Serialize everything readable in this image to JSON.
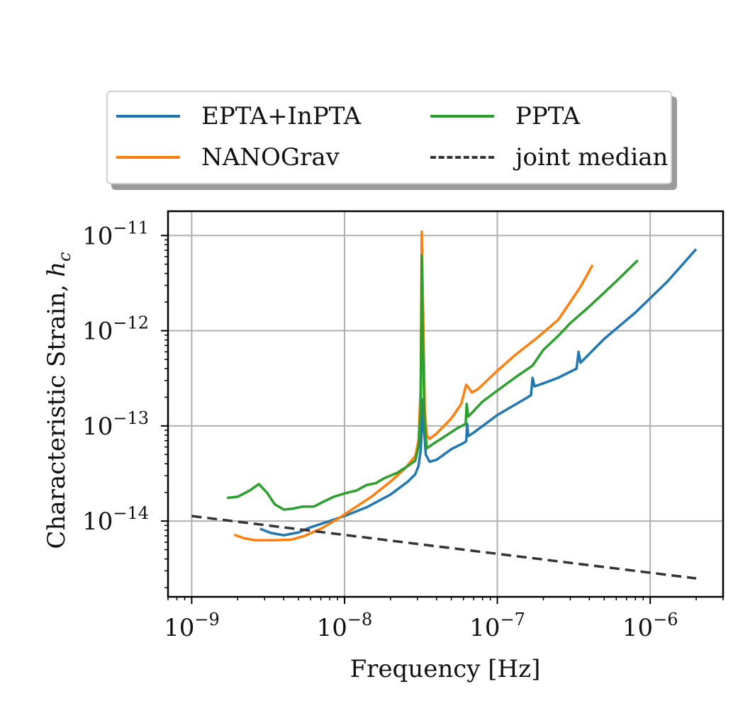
{
  "chart_data": {
    "type": "line",
    "xscale": "log",
    "yscale": "log",
    "xlabel": "Frequency [Hz]",
    "ylabel": "Characteristic Strain,",
    "ylabel_symbol": "h",
    "ylabel_subscript": "c",
    "xlim": [
      7e-10,
      3e-06
    ],
    "ylim": [
      1.6e-15,
      1.8e-11
    ],
    "grid": true,
    "legend_placement": "above",
    "x_ticks": [
      {
        "exp": -9,
        "label": "10",
        "sup": "−9"
      },
      {
        "exp": -8,
        "label": "10",
        "sup": "−8"
      },
      {
        "exp": -7,
        "label": "10",
        "sup": "−7"
      },
      {
        "exp": -6,
        "label": "10",
        "sup": "−6"
      }
    ],
    "y_ticks": [
      {
        "exp": -14,
        "label": "10",
        "sup": "−14"
      },
      {
        "exp": -13,
        "label": "10",
        "sup": "−13"
      },
      {
        "exp": -12,
        "label": "10",
        "sup": "−12"
      },
      {
        "exp": -11,
        "label": "10",
        "sup": "−11"
      }
    ],
    "series": [
      {
        "name": "EPTA+InPTA",
        "color": "#1f77b4",
        "dash": "solid",
        "points": [
          [
            2.8e-09,
            8.3e-15
          ],
          [
            3.3e-09,
            7.5e-15
          ],
          [
            4e-09,
            7.1e-15
          ],
          [
            5e-09,
            7.6e-15
          ],
          [
            6e-09,
            8.6e-15
          ],
          [
            8e-09,
            1e-14
          ],
          [
            1e-08,
            1.13e-14
          ],
          [
            1.4e-08,
            1.4e-14
          ],
          [
            2e-08,
            1.9e-14
          ],
          [
            2.6e-08,
            2.6e-14
          ],
          [
            2.9e-08,
            3.1e-14
          ],
          [
            3.05e-08,
            3.8e-14
          ],
          [
            3.15e-08,
            5.5e-14
          ],
          [
            3.2e-08,
            9e-14
          ],
          [
            3.24e-08,
            1.9e-13
          ],
          [
            3.3e-08,
            1e-13
          ],
          [
            3.4e-08,
            5e-14
          ],
          [
            3.6e-08,
            4.2e-14
          ],
          [
            4e-08,
            4.4e-14
          ],
          [
            5e-08,
            5.7e-14
          ],
          [
            6e-08,
            6.6e-14
          ],
          [
            6.25e-08,
            6.9e-14
          ],
          [
            6.35e-08,
            1.05e-13
          ],
          [
            6.45e-08,
            7.8e-14
          ],
          [
            7e-08,
            8.5e-14
          ],
          [
            1e-07,
            1.3e-13
          ],
          [
            1.5e-07,
            1.9e-13
          ],
          [
            1.66e-07,
            2.1e-13
          ],
          [
            1.7e-07,
            3.2e-13
          ],
          [
            1.75e-07,
            2.6e-13
          ],
          [
            2e-07,
            2.8e-13
          ],
          [
            2.5e-07,
            3.2e-13
          ],
          [
            3.3e-07,
            4e-13
          ],
          [
            3.4e-07,
            6e-13
          ],
          [
            3.5e-07,
            4.6e-13
          ],
          [
            5e-07,
            8.2e-13
          ],
          [
            8e-07,
            1.55e-12
          ],
          [
            1.3e-06,
            3.3e-12
          ],
          [
            2e-06,
            7.2e-12
          ]
        ]
      },
      {
        "name": "NANOGrav",
        "color": "#ff7f0e",
        "dash": "solid",
        "points": [
          [
            1.9e-09,
            7.2e-15
          ],
          [
            2.2e-09,
            6.6e-15
          ],
          [
            2.6e-09,
            6.3e-15
          ],
          [
            3.5e-09,
            6.3e-15
          ],
          [
            4.5e-09,
            6.4e-15
          ],
          [
            5.5e-09,
            7e-15
          ],
          [
            7e-09,
            8.3e-15
          ],
          [
            9e-09,
            1.05e-14
          ],
          [
            1.1e-08,
            1.3e-14
          ],
          [
            1.5e-08,
            1.8e-14
          ],
          [
            2e-08,
            2.6e-14
          ],
          [
            2.5e-08,
            3.6e-14
          ],
          [
            2.9e-08,
            4.8e-14
          ],
          [
            3.05e-08,
            7e-14
          ],
          [
            3.15e-08,
            2.5e-13
          ],
          [
            3.2e-08,
            1.1e-11
          ],
          [
            3.27e-08,
            1.5e-12
          ],
          [
            3.35e-08,
            1.5e-13
          ],
          [
            3.45e-08,
            8e-14
          ],
          [
            3.6e-08,
            7.3e-14
          ],
          [
            4e-08,
            8.3e-14
          ],
          [
            5e-08,
            1.2e-13
          ],
          [
            5.8e-08,
            1.7e-13
          ],
          [
            6.25e-08,
            2.7e-13
          ],
          [
            6.5e-08,
            2.5e-13
          ],
          [
            6.8e-08,
            2.25e-13
          ],
          [
            7.5e-08,
            2.45e-13
          ],
          [
            1e-07,
            3.8e-13
          ],
          [
            1.3e-07,
            5.5e-13
          ],
          [
            1.5e-07,
            6.6e-13
          ],
          [
            1.8e-07,
            8.3e-13
          ],
          [
            2.5e-07,
            1.3e-12
          ],
          [
            3e-07,
            2e-12
          ],
          [
            3.5e-07,
            2.9e-12
          ],
          [
            4.2e-07,
            4.9e-12
          ]
        ]
      },
      {
        "name": "PPTA",
        "color": "#2ca02c",
        "dash": "solid",
        "points": [
          [
            1.7e-09,
            1.75e-14
          ],
          [
            2e-09,
            1.8e-14
          ],
          [
            2.4e-09,
            2.1e-14
          ],
          [
            2.75e-09,
            2.45e-14
          ],
          [
            3.1e-09,
            2e-14
          ],
          [
            3.5e-09,
            1.5e-14
          ],
          [
            4e-09,
            1.32e-14
          ],
          [
            4.6e-09,
            1.35e-14
          ],
          [
            5.3e-09,
            1.42e-14
          ],
          [
            6.3e-09,
            1.42e-14
          ],
          [
            7.3e-09,
            1.6e-14
          ],
          [
            8.5e-09,
            1.8e-14
          ],
          [
            1e-08,
            1.95e-14
          ],
          [
            1.2e-08,
            2.1e-14
          ],
          [
            1.4e-08,
            2.4e-14
          ],
          [
            1.6e-08,
            2.5e-14
          ],
          [
            1.8e-08,
            2.8e-14
          ],
          [
            2.2e-08,
            3.2e-14
          ],
          [
            2.6e-08,
            3.8e-14
          ],
          [
            2.9e-08,
            4.3e-14
          ],
          [
            3.05e-08,
            6e-14
          ],
          [
            3.15e-08,
            1.5e-13
          ],
          [
            3.2e-08,
            6.2e-12
          ],
          [
            3.27e-08,
            6e-13
          ],
          [
            3.33e-08,
            1.2e-13
          ],
          [
            3.45e-08,
            5.8e-14
          ],
          [
            3.7e-08,
            6.3e-14
          ],
          [
            4.5e-08,
            7.7e-14
          ],
          [
            5.5e-08,
            9.5e-14
          ],
          [
            6.2e-08,
            1.05e-13
          ],
          [
            6.3e-08,
            1.7e-13
          ],
          [
            6.45e-08,
            1.25e-13
          ],
          [
            8e-08,
            1.8e-13
          ],
          [
            1e-07,
            2.35e-13
          ],
          [
            1.3e-07,
            3.2e-13
          ],
          [
            1.7e-07,
            4.3e-13
          ],
          [
            2e-07,
            6.3e-13
          ],
          [
            2.5e-07,
            8.8e-13
          ],
          [
            3e-07,
            1.2e-12
          ],
          [
            4e-07,
            1.8e-12
          ],
          [
            6e-07,
            3.3e-12
          ],
          [
            8.3e-07,
            5.5e-12
          ]
        ]
      },
      {
        "name": "joint median",
        "color": "#333333",
        "dash": "dashed",
        "points": [
          [
            1e-09,
            1.13e-14
          ],
          [
            2e-06,
            2.5e-15
          ]
        ]
      }
    ]
  }
}
